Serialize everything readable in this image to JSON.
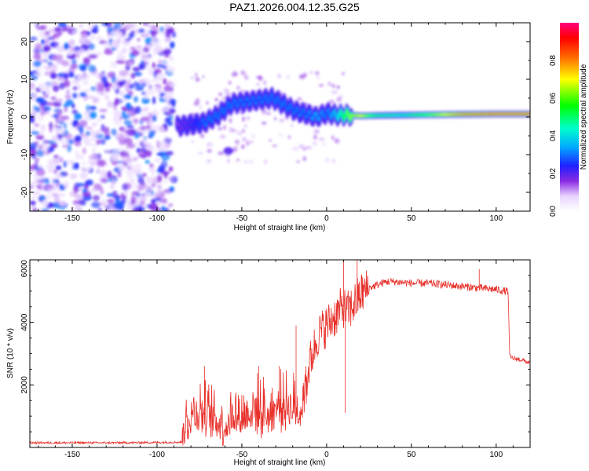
{
  "page_title": "PAZ1.2026.004.12.35.G25",
  "chart_data": [
    {
      "type": "heatmap",
      "title": "PAZ1.2026.004.12.35.G25",
      "xlabel": "Height of straight line (km)",
      "ylabel": "Frequency (Hz)",
      "xlim": [
        -175,
        120
      ],
      "ylim": [
        -25,
        25
      ],
      "x_ticks": [
        -150,
        -100,
        -50,
        0,
        50,
        100
      ],
      "x_tick_labels": [
        "-150",
        "-100",
        "-50",
        "0",
        "50",
        "100"
      ],
      "y_ticks": [
        -20,
        -10,
        0,
        10,
        20
      ],
      "y_tick_labels": [
        "-20",
        "-10",
        "0",
        "10",
        "20"
      ],
      "colorbar": {
        "label": "Normalized spectral amplitude",
        "range": [
          0,
          1
        ],
        "ticks": [
          0.0,
          0.2,
          0.4,
          0.6,
          0.8
        ],
        "tick_labels": [
          "0.0",
          "0.2",
          "0.4",
          "0.6",
          "0.8"
        ],
        "colormap": "rainbow (white-violet-blue-cyan-green-yellow-red-magenta)"
      },
      "ridge": {
        "description": "dominant frequency track vs height",
        "x": [
          -88,
          -80,
          -72,
          -64,
          -56,
          -48,
          -40,
          -32,
          -24,
          -18,
          -12,
          -6,
          0,
          6,
          12,
          20,
          30,
          45,
          60,
          80,
          100,
          120
        ],
        "y": [
          -2.5,
          -2.0,
          -1.5,
          0.5,
          3.5,
          4.0,
          4.5,
          5.0,
          3.0,
          1.5,
          0.8,
          0.0,
          1.0,
          0.5,
          0.5,
          0.3,
          0.4,
          0.5,
          0.6,
          0.7,
          0.8,
          0.8
        ],
        "amplitude": [
          0.15,
          0.2,
          0.3,
          0.3,
          0.3,
          0.3,
          0.3,
          0.3,
          0.3,
          0.3,
          0.3,
          0.35,
          0.3,
          0.4,
          0.6,
          0.7,
          0.5,
          0.45,
          0.6,
          0.8,
          0.85,
          0.85
        ]
      },
      "noise_region": {
        "x_range": [
          -175,
          -90
        ],
        "y_range": [
          -25,
          25
        ],
        "amplitude_range": [
          0.0,
          0.15
        ]
      }
    },
    {
      "type": "line",
      "xlabel": "Height of straight line (km)",
      "ylabel": "SNR (10 * v/v)",
      "xlim": [
        -175,
        120
      ],
      "ylim": [
        0,
        6000
      ],
      "x_ticks": [
        -150,
        -100,
        -50,
        0,
        50,
        100
      ],
      "x_tick_labels": [
        "-150",
        "-100",
        "-50",
        "0",
        "50",
        "100"
      ],
      "y_ticks": [
        2000,
        4000,
        6000
      ],
      "y_tick_labels": [
        "2000",
        "4000",
        "6000"
      ],
      "series": [
        {
          "name": "SNR",
          "color": "#e8302a",
          "x": [
            -175,
            -150,
            -120,
            -100,
            -85,
            -80,
            -75,
            -70,
            -65,
            -60,
            -55,
            -50,
            -45,
            -40,
            -35,
            -30,
            -25,
            -20,
            -15,
            -10,
            -5,
            0,
            5,
            8,
            10,
            12,
            15,
            20,
            25,
            30,
            35,
            40,
            50,
            60,
            70,
            80,
            90,
            100,
            105,
            107,
            108,
            110,
            115,
            120
          ],
          "y": [
            150,
            150,
            150,
            160,
            170,
            800,
            900,
            750,
            600,
            450,
            800,
            700,
            900,
            900,
            800,
            1000,
            1100,
            1000,
            900,
            2700,
            3600,
            3900,
            4200,
            4400,
            4500,
            4300,
            4500,
            4900,
            5100,
            5200,
            5300,
            5300,
            5250,
            5250,
            5200,
            5150,
            5100,
            5050,
            5000,
            5000,
            2900,
            2850,
            2800,
            2700
          ]
        }
      ],
      "spikes": [
        {
          "x": -72,
          "y": 2600
        },
        {
          "x": -40,
          "y": 2600
        },
        {
          "x": -28,
          "y": 2600
        },
        {
          "x": -18,
          "y": 3900
        },
        {
          "x": 10,
          "y": 6000
        },
        {
          "x": 11,
          "y": 1100
        },
        {
          "x": 18,
          "y": 6000
        },
        {
          "x": 90,
          "y": 5700
        }
      ]
    }
  ]
}
